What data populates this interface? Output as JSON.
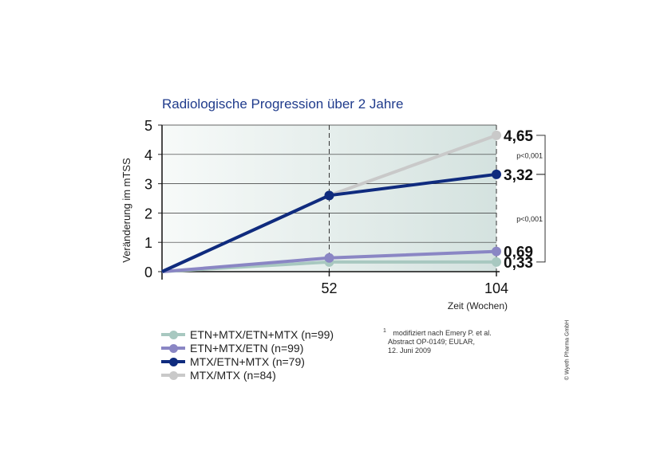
{
  "chart_data": {
    "type": "line",
    "title": "Radiologische Progression über 2 Jahre",
    "ylabel": "Veränderung im mTSS",
    "xlabel": "Zeit (Wochen)",
    "x": [
      0,
      52,
      104
    ],
    "xticks": [
      "52",
      "104"
    ],
    "xlim": [
      0,
      104
    ],
    "yticks": [
      "0",
      "1",
      "2",
      "3",
      "4",
      "5"
    ],
    "ylim": [
      0,
      5
    ],
    "grid": true,
    "series": [
      {
        "name": "ETN+MTX/ETN+MTX (n=99)",
        "color": "#a8c8c0",
        "values": [
          0,
          0.33,
          0.33
        ]
      },
      {
        "name": "ETN+MTX/ETN (n=99)",
        "color": "#8a86c4",
        "values": [
          0,
          0.47,
          0.69
        ]
      },
      {
        "name": "MTX/ETN+MTX (n=79)",
        "color": "#0f2b7e",
        "values": [
          0,
          2.6,
          3.32
        ]
      },
      {
        "name": "MTX/MTX (n=84)",
        "color": "#c9c9c9",
        "values": [
          0,
          2.6,
          4.65
        ]
      }
    ],
    "end_labels": [
      {
        "text": "4,65",
        "value": 4.65
      },
      {
        "text": "3,32",
        "value": 3.32
      },
      {
        "text": "0,69",
        "value": 0.69
      },
      {
        "text": "0,33",
        "value": 0.33
      }
    ],
    "brackets": [
      {
        "text": "p<0,001",
        "from": 4.65,
        "to": 3.32
      },
      {
        "text": "p<0,001",
        "from": 3.32,
        "to": 0.33
      }
    ]
  },
  "footnote": {
    "marker": "1",
    "lines": [
      "modifiziert nach Emery P. et al.",
      "Abstract OP-0149; EULAR,",
      "12. Juni 2009"
    ]
  },
  "copyright": "© Wyeth Pharma GmbH"
}
